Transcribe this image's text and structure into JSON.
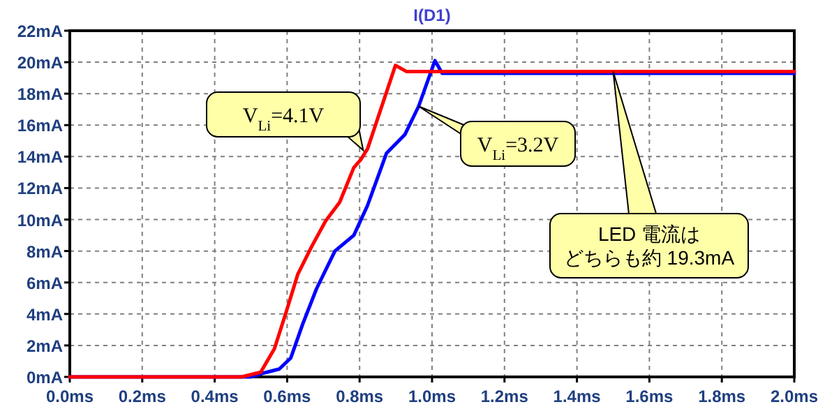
{
  "chart_data": {
    "type": "line",
    "title": "I(D1)",
    "xlim": [
      0,
      2.0
    ],
    "ylim": [
      0,
      22
    ],
    "xticks": [
      {
        "value": 0,
        "label": "0.0ms"
      },
      {
        "value": 0.2,
        "label": "0.2ms"
      },
      {
        "value": 0.4,
        "label": "0.4ms"
      },
      {
        "value": 0.6,
        "label": "0.6ms"
      },
      {
        "value": 0.8,
        "label": "0.8ms"
      },
      {
        "value": 1.0,
        "label": "1.0ms"
      },
      {
        "value": 1.2,
        "label": "1.2ms"
      },
      {
        "value": 1.4,
        "label": "1.4ms"
      },
      {
        "value": 1.6,
        "label": "1.6ms"
      },
      {
        "value": 1.8,
        "label": "1.8ms"
      },
      {
        "value": 2.0,
        "label": "2.0ms"
      }
    ],
    "yticks": [
      {
        "value": 0,
        "label": "0mA"
      },
      {
        "value": 2,
        "label": "2mA"
      },
      {
        "value": 4,
        "label": "4mA"
      },
      {
        "value": 6,
        "label": "6mA"
      },
      {
        "value": 8,
        "label": "8mA"
      },
      {
        "value": 10,
        "label": "10mA"
      },
      {
        "value": 12,
        "label": "12mA"
      },
      {
        "value": 14,
        "label": "14mA"
      },
      {
        "value": 16,
        "label": "16mA"
      },
      {
        "value": 18,
        "label": "18mA"
      },
      {
        "value": 20,
        "label": "20mA"
      },
      {
        "value": 22,
        "label": "22mA"
      }
    ],
    "grid": true,
    "series": [
      {
        "color": "#0000ff",
        "x": [
          0,
          0.5,
          0.527,
          0.578,
          0.61,
          0.642,
          0.681,
          0.732,
          0.784,
          0.822,
          0.874,
          0.925,
          0.963,
          1.008,
          1.028,
          1.2,
          1.5,
          1.8,
          2.0
        ],
        "values": [
          0,
          0,
          0.2,
          0.5,
          1.2,
          3.3,
          5.6,
          8.0,
          9.0,
          10.9,
          14.2,
          15.4,
          17.2,
          20.1,
          19.3,
          19.3,
          19.3,
          19.3,
          19.3
        ]
      },
      {
        "color": "#ff0000",
        "x": [
          0,
          0.474,
          0.527,
          0.565,
          0.597,
          0.629,
          0.668,
          0.706,
          0.745,
          0.784,
          0.803,
          0.822,
          0.899,
          0.93,
          1.2,
          1.5,
          1.8,
          2.0
        ],
        "values": [
          0,
          0,
          0.3,
          1.8,
          4.1,
          6.5,
          8.3,
          9.9,
          11.1,
          13.3,
          13.8,
          14.5,
          19.8,
          19.4,
          19.4,
          19.4,
          19.4,
          19.4
        ]
      }
    ],
    "annotations": [
      {
        "text": "V$_{Li}$=4.1V",
        "x": 0.81,
        "y": 14.4
      },
      {
        "text": "V$_{Li}$=3.2V",
        "x": 0.963,
        "y": 17.2
      },
      {
        "text": "LED 電流はどちらも約 19.3mA",
        "x": 1.5,
        "y": 19.4
      }
    ]
  }
}
